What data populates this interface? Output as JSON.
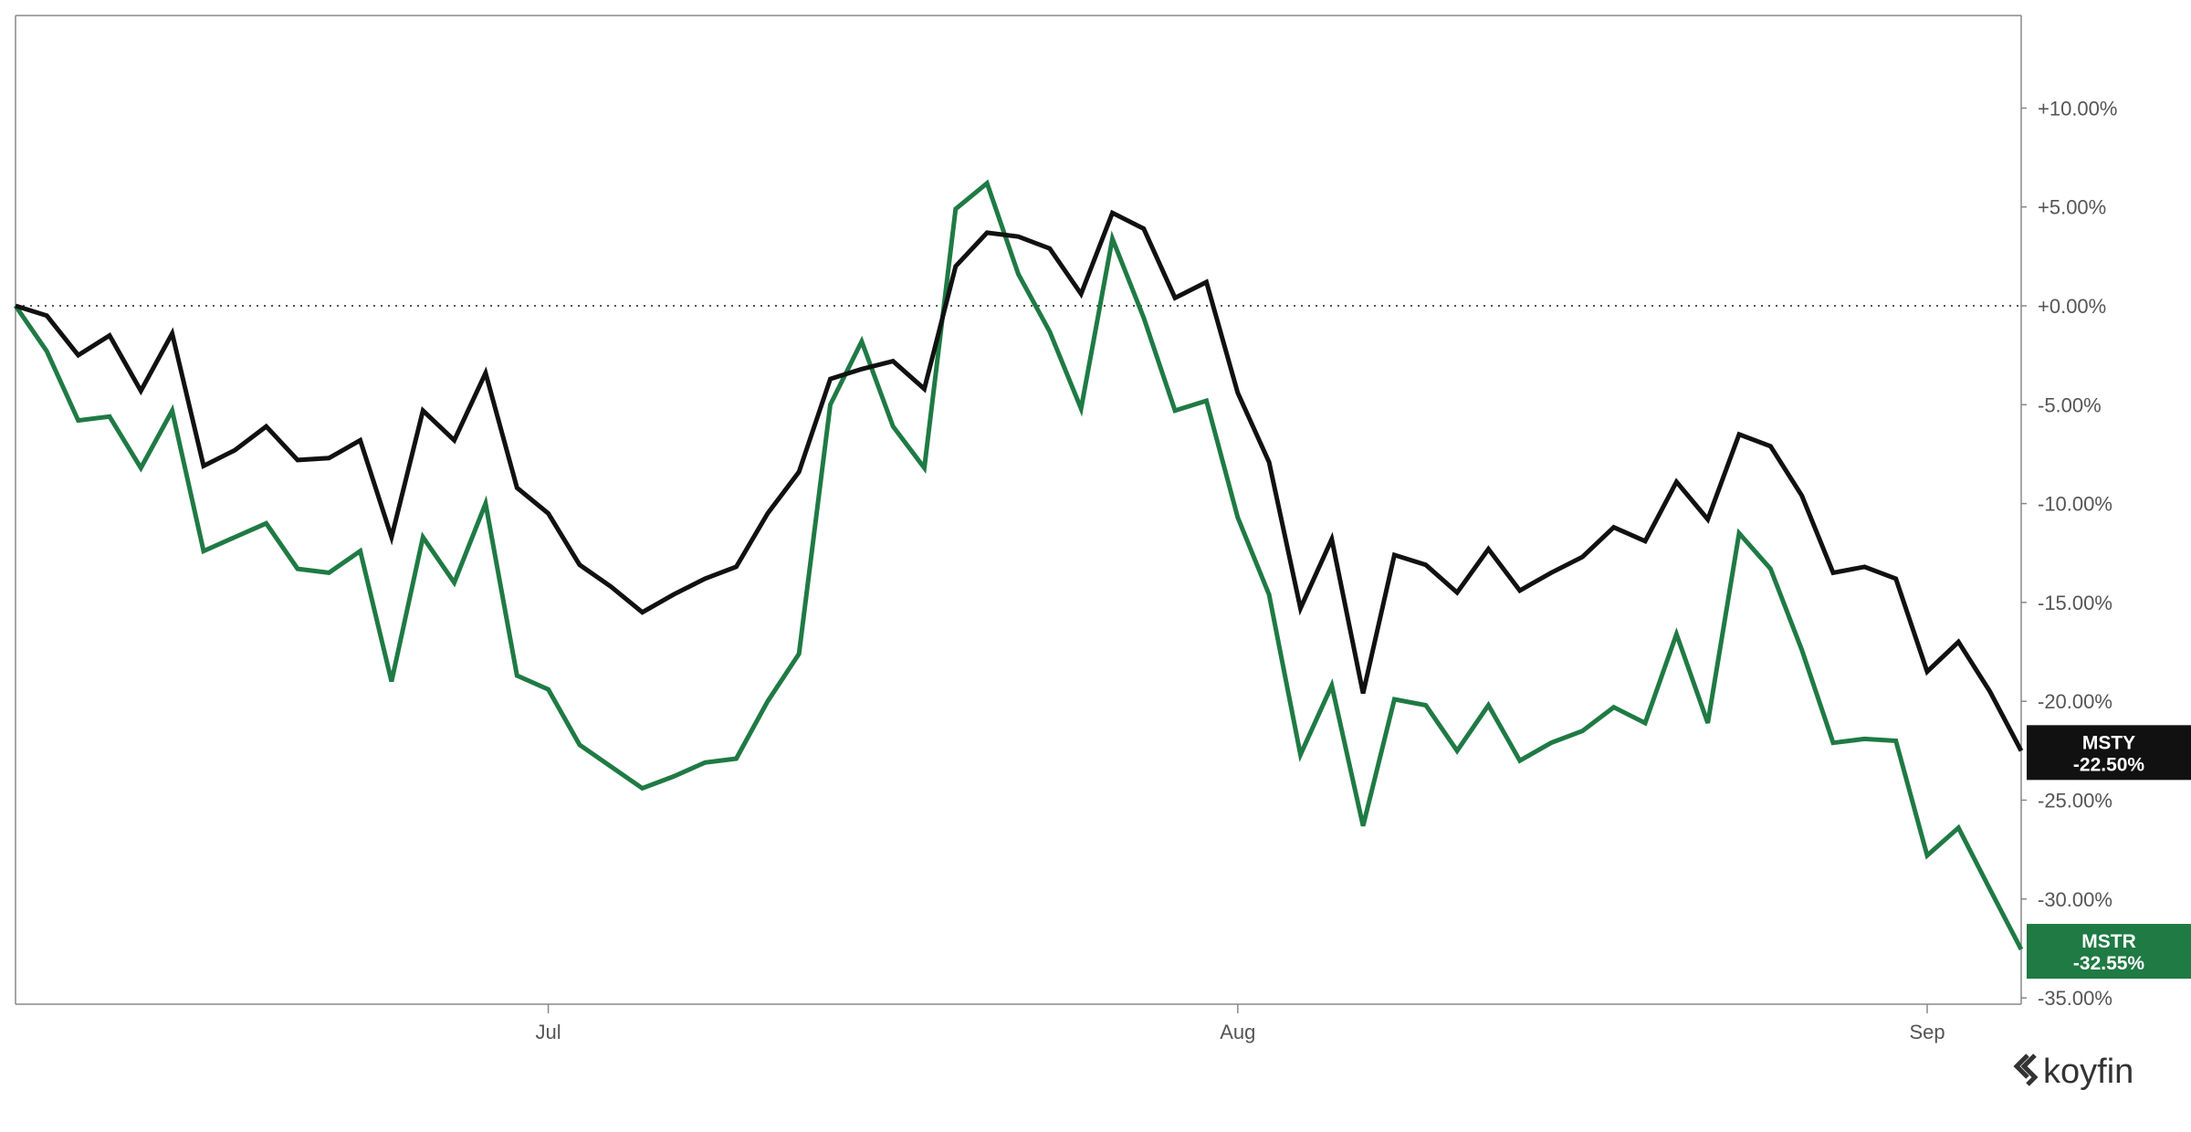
{
  "brand": {
    "name": "koyfin",
    "icon": "koyfin-logo-icon"
  },
  "chart_data": {
    "type": "line",
    "title": "",
    "xlabel": "",
    "ylabel": "",
    "ylim": [
      -35.0,
      14.0
    ],
    "y_ticks": [
      10,
      5,
      0,
      -5,
      -10,
      -15,
      -20,
      -25,
      -30,
      -35
    ],
    "y_tick_labels": [
      "+10.00%",
      "+5.00%",
      "+0.00%",
      "-5.00%",
      "-10.00%",
      "-15.00%",
      "-20.00%",
      "-25.00%",
      "-30.00%",
      "-35.00%"
    ],
    "x_tick_labels": [
      {
        "label": "Jul",
        "index": 17
      },
      {
        "label": "Aug",
        "index": 39
      },
      {
        "label": "Sep",
        "index": 61
      }
    ],
    "zero_line": {
      "value": 0,
      "style": "dotted"
    },
    "grid": false,
    "legend": "value badges at right edge",
    "x_count": 65,
    "series": [
      {
        "name": "MSTY",
        "color": "#111111",
        "badge_label": "MSTY",
        "badge_value": "-22.50%",
        "values": [
          0,
          -0.5,
          -2.5,
          -1.5,
          -4.3,
          -1.4,
          -8.1,
          -7.3,
          -6.1,
          -7.8,
          -7.7,
          -6.8,
          -11.7,
          -5.3,
          -6.8,
          -3.4,
          -9.2,
          -10.5,
          -13.1,
          -14.2,
          -15.5,
          -14.6,
          -13.8,
          -13.2,
          -10.5,
          -8.4,
          -3.7,
          -3.2,
          -2.8,
          -4.2,
          2.0,
          3.7,
          3.5,
          2.9,
          0.6,
          4.7,
          3.9,
          0.4,
          1.2,
          -4.4,
          -7.9,
          -15.3,
          -11.8,
          -19.6,
          -12.6,
          -13.1,
          -14.5,
          -12.3,
          -14.4,
          -13.5,
          -12.7,
          -11.2,
          -11.9,
          -8.9,
          -10.8,
          -6.5,
          -7.1,
          -9.6,
          -13.5,
          -13.2,
          -13.8,
          -18.5,
          -17.0,
          -19.5,
          -22.5
        ]
      },
      {
        "name": "MSTR",
        "color": "#1f7a44",
        "badge_label": "MSTR",
        "badge_value": "-32.55%",
        "values": [
          0,
          -2.3,
          -5.8,
          -5.6,
          -8.2,
          -5.3,
          -12.4,
          -11.7,
          -11.0,
          -13.3,
          -13.5,
          -12.4,
          -19.0,
          -11.7,
          -14.0,
          -10.0,
          -18.7,
          -19.4,
          -22.2,
          -23.3,
          -24.4,
          -23.8,
          -23.1,
          -22.9,
          -20.0,
          -17.6,
          -5.0,
          -1.8,
          -6.1,
          -8.2,
          4.9,
          6.2,
          1.6,
          -1.3,
          -5.2,
          3.4,
          -0.6,
          -5.3,
          -4.8,
          -10.7,
          -14.6,
          -22.7,
          -19.2,
          -26.3,
          -19.9,
          -20.2,
          -22.5,
          -20.2,
          -23.0,
          -22.1,
          -21.5,
          -20.3,
          -21.1,
          -16.6,
          -21.1,
          -11.5,
          -13.3,
          -17.4,
          -22.1,
          -21.9,
          -22.0,
          -27.8,
          -26.4,
          -29.5,
          -32.55
        ]
      }
    ]
  }
}
